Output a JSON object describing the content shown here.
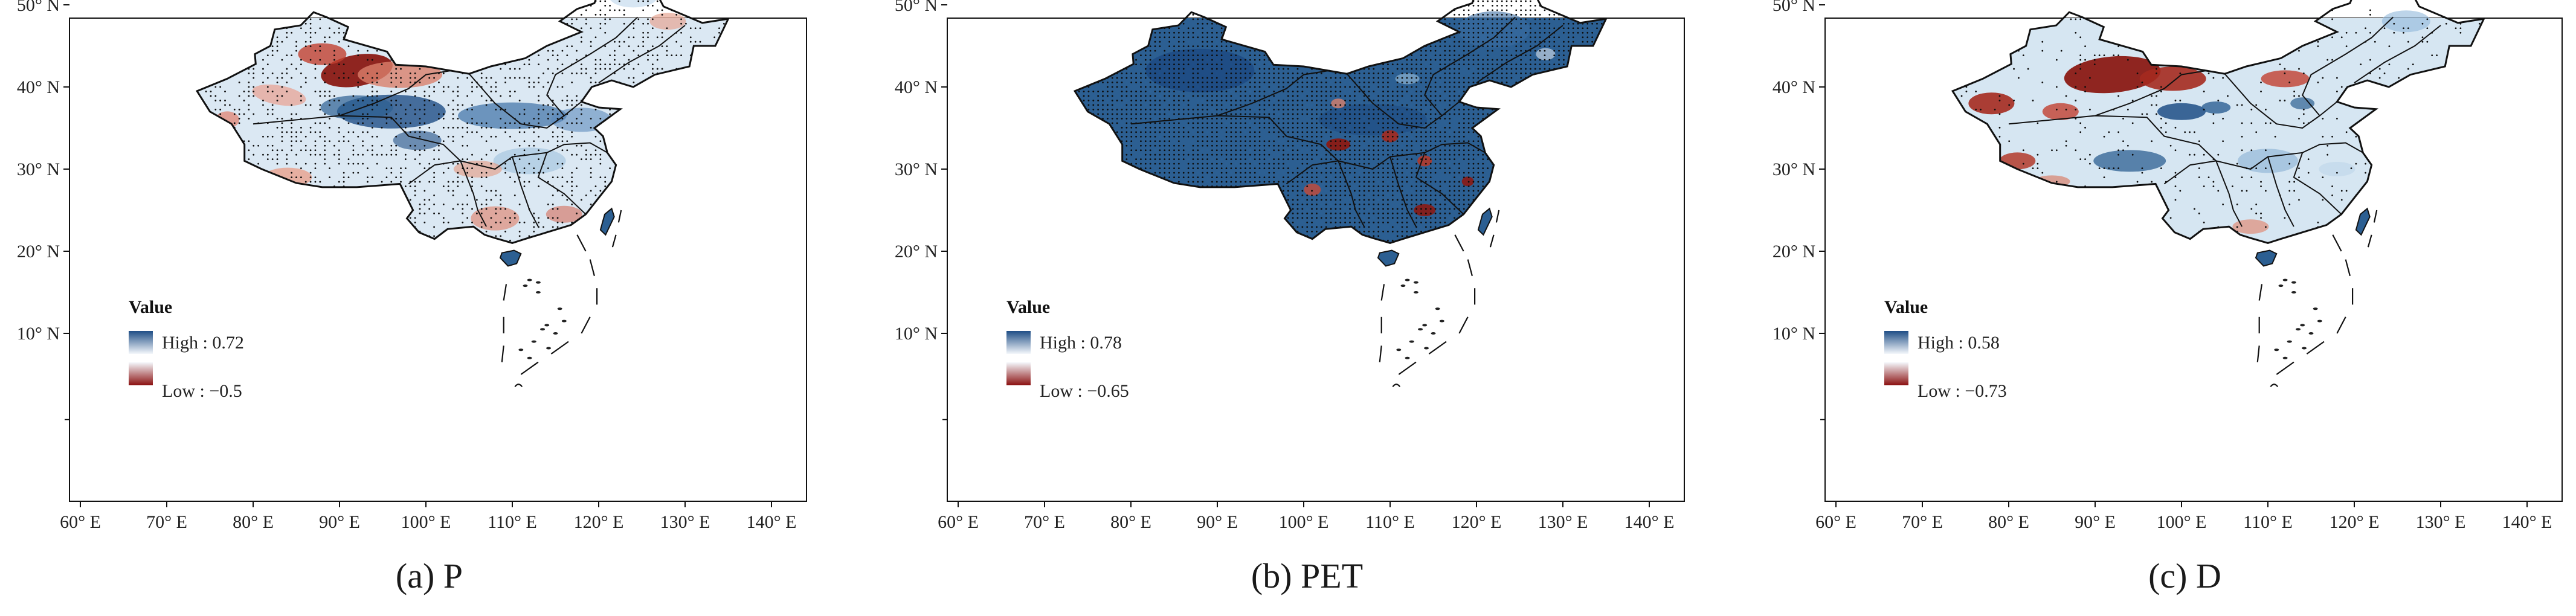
{
  "figure": {
    "x_tick_labels": [
      "60° E",
      "70° E",
      "80° E",
      "90° E",
      "100° E",
      "110° E",
      "120° E",
      "130° E",
      "140° E"
    ],
    "y_tick_labels": [
      "50° N",
      "40° N",
      "30° N",
      "20° N",
      "10° N"
    ],
    "legend_title": "Value",
    "colors": {
      "high": "#1f4e86",
      "mid": "#f4f7fb",
      "low": "#8b1010",
      "border": "#111111"
    }
  },
  "panels": [
    {
      "caption": "(a) P",
      "legend_high": "High : 0.72",
      "legend_low": "Low : −0.5",
      "base": "#dbe8f3",
      "stippled": "moderate",
      "highlights": [
        "red: northern Xinjiang / Tarim basin",
        "red: south Tibet and southeast coast"
      ]
    },
    {
      "caption": "(b) PET",
      "legend_high": "High : 0.78",
      "legend_low": "Low : −0.65",
      "base": "#2c5f92",
      "stippled": "dense",
      "highlights": [
        "red: scattered spots in central China"
      ]
    },
    {
      "caption": "(c) D",
      "legend_high": "High : 0.58",
      "legend_low": "Low : −0.73",
      "base": "#d6e6f2",
      "stippled": "sparse",
      "highlights": [
        "red: Xinjiang and Gansu",
        "blue: Tibetan plateau east"
      ]
    }
  ]
}
